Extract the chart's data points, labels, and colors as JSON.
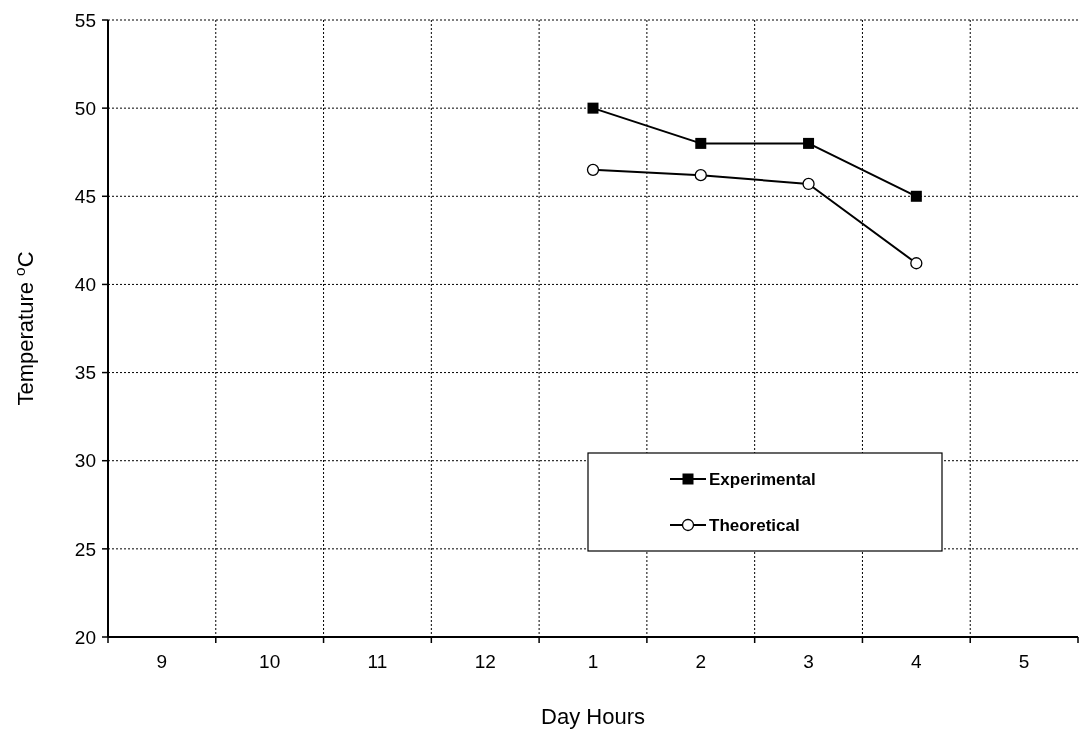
{
  "chart_data": {
    "type": "line",
    "xlabel": "Day Hours",
    "ylabel": "Temperature $^{o}$C",
    "categories": [
      "9",
      "10",
      "11",
      "12",
      "1",
      "2",
      "3",
      "4",
      "5"
    ],
    "series": [
      {
        "name": "Experimental",
        "color": "#000000",
        "marker": "square",
        "values": [
          null,
          null,
          null,
          null,
          50,
          48,
          48,
          45,
          null
        ]
      },
      {
        "name": "Theoretical",
        "color": "#000000",
        "marker": "circle",
        "values": [
          null,
          null,
          null,
          null,
          46.5,
          46.2,
          45.7,
          41.2,
          null
        ]
      }
    ],
    "ylim": [
      20,
      55
    ],
    "yticks": [
      20,
      25,
      30,
      35,
      40,
      45,
      50,
      55
    ],
    "grid": true,
    "legend": "bottom right",
    "line_style": "solid"
  }
}
